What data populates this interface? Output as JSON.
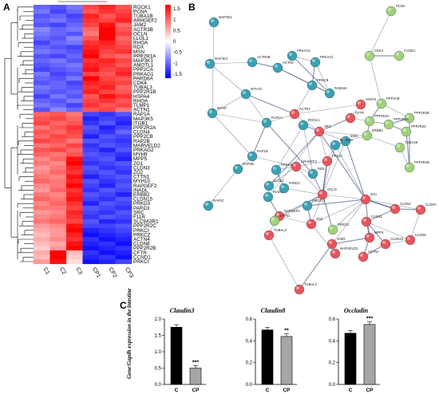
{
  "panels": {
    "a": "A",
    "b": "B",
    "c": "C"
  },
  "heatmap": {
    "columns": [
      "C1",
      "C2",
      "C3",
      "CP1",
      "CP2",
      "CP3"
    ],
    "legend_ticks": [
      "1.5",
      "1",
      "0.5",
      "0",
      "-0.5",
      "-1",
      "-1.5"
    ],
    "colors": {
      "high": "#ff0000",
      "mid": "#ffffff",
      "low": "#0000ff"
    },
    "genes": [
      "ROCK1",
      "PCNA",
      "TUBA1B",
      "ARHGEF2",
      "JAM2",
      "ACTR3B",
      "OCLN",
      "LLGL1",
      "RHOA",
      "RDX",
      "MSN",
      "PPP2R1A",
      "MAP3K1",
      "AMOTL1",
      "PPP2CA",
      "PRKAG1",
      "PARD6A",
      "CDK4",
      "TUBAL3",
      "PPP2R1B",
      "HSPA4",
      "RHOA",
      "TLMP1",
      "ACTN1",
      "RAP1A",
      "MAP3K5",
      "ITGB1",
      "PPP2R2A",
      "CLDN4",
      "PPP2CB",
      "RAP2B",
      "MARVELD2",
      "PRKAG2",
      "MYH9",
      "MPP5",
      "ZO1",
      "CLDN3",
      "ZO2",
      "CTTN1",
      "MYH10",
      "RAPGEF2",
      "INADL",
      "ERBB2",
      "CLDN15",
      "PRKD3",
      "PARD3",
      "SRC",
      "F11R",
      "SLC9A3R1",
      "PPP2R2C",
      "PRKCI",
      "PRKCZ",
      "ACTN4",
      "CLDN8",
      "PPP2R2B",
      "CFTR",
      "CCND1",
      "PRKCI"
    ],
    "values": [
      [
        -0.9,
        -1.0,
        -0.8,
        1.1,
        1.3,
        1.0
      ],
      [
        -0.8,
        -1.1,
        -0.9,
        1.0,
        1.2,
        1.1
      ],
      [
        -1.0,
        -0.9,
        -1.1,
        1.3,
        1.0,
        1.2
      ],
      [
        -0.9,
        -0.8,
        -1.0,
        1.2,
        1.1,
        1.3
      ],
      [
        -1.0,
        -1.1,
        -0.9,
        1.1,
        1.4,
        0.9
      ],
      [
        -0.7,
        -0.9,
        -0.8,
        0.9,
        1.5,
        1.0
      ],
      [
        -0.8,
        -0.9,
        -1.0,
        0.8,
        1.6,
        1.1
      ],
      [
        -0.9,
        -1.0,
        -0.7,
        1.0,
        1.5,
        0.9
      ],
      [
        -1.1,
        -0.9,
        -0.8,
        1.2,
        1.3,
        1.0
      ],
      [
        -0.9,
        -1.0,
        -1.1,
        1.3,
        1.2,
        1.1
      ],
      [
        -0.8,
        -0.9,
        -1.0,
        1.4,
        1.1,
        1.2
      ],
      [
        -1.0,
        -1.1,
        -0.9,
        1.5,
        1.0,
        0.9
      ],
      [
        -0.9,
        -0.8,
        -1.0,
        1.2,
        1.3,
        1.1
      ],
      [
        -1.0,
        -0.9,
        -0.8,
        1.3,
        1.2,
        1.0
      ],
      [
        -1.1,
        -1.0,
        -0.9,
        1.4,
        1.1,
        1.2
      ],
      [
        -0.8,
        -1.1,
        -1.0,
        1.1,
        1.0,
        1.3
      ],
      [
        -0.9,
        -1.0,
        -0.8,
        1.5,
        1.1,
        1.0
      ],
      [
        -1.0,
        -0.9,
        -1.1,
        1.3,
        1.2,
        1.1
      ],
      [
        -0.8,
        -0.9,
        -1.0,
        1.2,
        1.3,
        0.9
      ],
      [
        -0.9,
        -1.0,
        -0.9,
        1.3,
        1.1,
        1.0
      ],
      [
        -1.1,
        -0.8,
        -1.0,
        1.0,
        1.4,
        1.2
      ],
      [
        -0.9,
        -1.0,
        -0.8,
        1.1,
        1.2,
        1.0
      ],
      [
        -0.8,
        -0.9,
        -1.1,
        1.2,
        1.0,
        1.1
      ],
      [
        -1.0,
        -0.7,
        -0.9,
        1.0,
        1.1,
        0.8
      ],
      [
        0.9,
        1.0,
        0.8,
        -1.1,
        -1.2,
        -1.0
      ],
      [
        1.0,
        1.1,
        0.9,
        -1.3,
        -1.1,
        -1.2
      ],
      [
        1.1,
        0.9,
        1.0,
        -1.2,
        -1.0,
        -1.3
      ],
      [
        0.8,
        1.0,
        1.2,
        -1.0,
        -1.3,
        -1.1
      ],
      [
        1.0,
        0.9,
        1.1,
        -1.1,
        -1.2,
        -0.9
      ],
      [
        0.9,
        1.1,
        1.0,
        -1.3,
        -1.0,
        -1.1
      ],
      [
        1.1,
        1.0,
        0.8,
        -1.0,
        -1.1,
        -1.2
      ],
      [
        0.8,
        0.9,
        1.1,
        -1.2,
        -1.0,
        -1.1
      ],
      [
        1.0,
        1.1,
        0.9,
        -1.1,
        -1.3,
        -1.0
      ],
      [
        0.9,
        0.8,
        1.0,
        -1.0,
        -1.1,
        -1.2
      ],
      [
        0.7,
        0.9,
        1.4,
        -1.1,
        -1.0,
        -1.3
      ],
      [
        0.8,
        0.7,
        1.5,
        -1.2,
        -1.1,
        -1.0
      ],
      [
        0.6,
        0.8,
        1.3,
        -1.0,
        -1.2,
        -1.1
      ],
      [
        0.7,
        0.9,
        1.2,
        -1.1,
        -1.0,
        -1.2
      ],
      [
        0.8,
        0.7,
        1.4,
        -1.3,
        -1.1,
        -1.0
      ],
      [
        0.9,
        0.8,
        1.3,
        -1.0,
        -1.2,
        -1.1
      ],
      [
        0.7,
        0.8,
        1.5,
        -1.1,
        -1.3,
        -1.0
      ],
      [
        0.6,
        0.9,
        1.2,
        -1.2,
        -1.0,
        -1.1
      ],
      [
        0.8,
        0.7,
        1.3,
        -1.0,
        -1.1,
        -1.3
      ],
      [
        0.9,
        0.8,
        1.4,
        -1.1,
        -1.2,
        -1.0
      ],
      [
        0.7,
        0.9,
        1.2,
        -1.3,
        -1.0,
        -1.1
      ],
      [
        0.8,
        0.8,
        1.1,
        -1.0,
        -1.1,
        -1.2
      ],
      [
        0.6,
        0.7,
        1.3,
        -1.1,
        -1.2,
        -1.0
      ],
      [
        0.7,
        0.8,
        1.2,
        -1.2,
        -1.0,
        -1.1
      ],
      [
        0.8,
        0.9,
        1.1,
        -1.0,
        -1.3,
        -1.2
      ],
      [
        0.6,
        0.7,
        1.4,
        -1.1,
        -1.1,
        -1.0
      ],
      [
        0.5,
        0.6,
        1.5,
        -1.3,
        -1.2,
        -1.1
      ],
      [
        0.4,
        0.6,
        1.3,
        -1.4,
        -1.3,
        -1.2
      ],
      [
        0.5,
        0.7,
        1.2,
        -1.2,
        -1.4,
        -1.3
      ],
      [
        0.4,
        0.5,
        1.4,
        -1.3,
        -1.2,
        -1.4
      ],
      [
        0.3,
        0.6,
        1.5,
        -1.4,
        -1.3,
        -1.2
      ],
      [
        0.5,
        1.6,
        0.4,
        -1.2,
        -1.4,
        -1.3
      ],
      [
        0.4,
        1.5,
        0.3,
        -1.3,
        -1.2,
        -1.4
      ],
      [
        0.6,
        1.4,
        0.2,
        -1.4,
        -1.3,
        -1.1
      ]
    ]
  },
  "network": {
    "colors": {
      "teal": "#3aa0b3",
      "green": "#9fd27a",
      "red": "#e8545a",
      "edge": "#2f4370"
    },
    "nodes": [
      {
        "label": "MAP3K5",
        "c": "teal"
      },
      {
        "label": "PCNA",
        "c": "green"
      },
      {
        "label": "PRKAG2",
        "c": "teal"
      },
      {
        "label": "PRKAG1",
        "c": "teal"
      },
      {
        "label": "CDK4",
        "c": "green"
      },
      {
        "label": "CCND1",
        "c": "green"
      },
      {
        "label": "MAP3K1",
        "c": "teal"
      },
      {
        "label": "ACTR3B",
        "c": "teal"
      },
      {
        "label": "ACTR2",
        "c": "teal"
      },
      {
        "label": "PRKCB",
        "c": "teal"
      },
      {
        "label": "RAB18A",
        "c": "teal"
      },
      {
        "label": "MYH10",
        "c": "teal"
      },
      {
        "label": "PPP2CB",
        "c": "green"
      },
      {
        "label": "PPP2R2B",
        "c": "green"
      },
      {
        "label": "MYH9",
        "c": "teal"
      },
      {
        "label": "HSPA4",
        "c": "red"
      },
      {
        "label": "ACTN1",
        "c": "red"
      },
      {
        "label": "CFTR",
        "c": "red"
      },
      {
        "label": "PPP2R2A",
        "c": "green"
      },
      {
        "label": "PPP2R2C",
        "c": "green"
      },
      {
        "label": "PPP2R1A",
        "c": "green"
      },
      {
        "label": "RAP1A",
        "c": "teal"
      },
      {
        "label": "ROCK1",
        "c": "teal"
      },
      {
        "label": "TUBA1B",
        "c": "green"
      },
      {
        "label": "ERBB2",
        "c": "green"
      },
      {
        "label": "SRC",
        "c": "red"
      },
      {
        "label": "PPP2R1B",
        "c": "green"
      },
      {
        "label": "RAP1B",
        "c": "teal"
      },
      {
        "label": "MSN",
        "c": "teal"
      },
      {
        "label": "PARD6A",
        "c": "teal"
      },
      {
        "label": "PRKCI",
        "c": "red"
      },
      {
        "label": "RAP2B",
        "c": "teal"
      },
      {
        "label": "ARHGEF2",
        "c": "red"
      },
      {
        "label": "RDX",
        "c": "teal"
      },
      {
        "label": "PRKCZ",
        "c": "teal"
      },
      {
        "label": "PARD3",
        "c": "teal"
      },
      {
        "label": "OCLN",
        "c": "red"
      },
      {
        "label": "RAP2C",
        "c": "teal"
      },
      {
        "label": "LLGL1",
        "c": "teal"
      },
      {
        "label": "INADL",
        "c": "teal"
      },
      {
        "label": "AMOTL1",
        "c": "teal"
      },
      {
        "label": "ZO1",
        "c": "red"
      },
      {
        "label": "RAPGEF2",
        "c": "red"
      },
      {
        "label": "CTTN1",
        "c": "green"
      },
      {
        "label": "ZO2",
        "c": "red"
      },
      {
        "label": "PRKD3",
        "c": "green"
      },
      {
        "label": "CLDN4",
        "c": "red"
      },
      {
        "label": "CLDN7",
        "c": "red"
      },
      {
        "label": "TUBAL3",
        "c": "red"
      },
      {
        "label": "MPP5",
        "c": "red"
      },
      {
        "label": "CLDN3",
        "c": "red"
      },
      {
        "label": "CLDN8",
        "c": "red"
      },
      {
        "label": "CLDN15",
        "c": "red"
      },
      {
        "label": "JAM2",
        "c": "red"
      },
      {
        "label": "MARVELD2",
        "c": "red"
      },
      {
        "label": "TUBAL3",
        "c": "red"
      },
      {
        "label": "ACTN4",
        "c": "red"
      }
    ]
  },
  "bar_charts": {
    "y_label": "Gene/Gapdh expression in the intestine",
    "colors": {
      "C": "#000000",
      "CP": "#a6a6a6"
    },
    "charts": [
      {
        "title": "Claudin3",
        "ymax": 2.0,
        "yticks": [
          "0.0",
          "0.5",
          "1.0",
          "1.5",
          "2.0"
        ],
        "categories": [
          "C",
          "CP"
        ],
        "values": [
          1.75,
          0.5
        ],
        "sig": "***"
      },
      {
        "title": "Claudin8",
        "ymax": 0.6,
        "yticks": [
          "0.0",
          "0.2",
          "0.4",
          "0.6"
        ],
        "categories": [
          "C",
          "CP"
        ],
        "values": [
          0.5,
          0.44
        ],
        "sig": "**"
      },
      {
        "title": "Occludin",
        "ymax": 0.6,
        "yticks": [
          "0.0",
          "0.2",
          "0.4",
          "0.6"
        ],
        "categories": [
          "C",
          "CP"
        ],
        "values": [
          0.47,
          0.55
        ],
        "sig": "***"
      }
    ]
  },
  "chart_data": [
    {
      "type": "heatmap",
      "title": "",
      "columns": [
        "C1",
        "C2",
        "C3",
        "CP1",
        "CP2",
        "CP3"
      ],
      "color_scale": [
        -1.5,
        1.5
      ],
      "legend_ticks": [
        "1.5",
        "1",
        "0.5",
        "0",
        "-0.5",
        "-1",
        "-1.5"
      ]
    },
    {
      "type": "bar",
      "title": "Claudin3",
      "categories": [
        "C",
        "CP"
      ],
      "values": [
        1.75,
        0.5
      ],
      "ylabel": "Gene/Gapdh expression in the intestine",
      "ylim": [
        0,
        2.0
      ],
      "annotations": [
        "***"
      ]
    },
    {
      "type": "bar",
      "title": "Claudin8",
      "categories": [
        "C",
        "CP"
      ],
      "values": [
        0.5,
        0.44
      ],
      "ylabel": "",
      "ylim": [
        0,
        0.6
      ],
      "annotations": [
        "**"
      ]
    },
    {
      "type": "bar",
      "title": "Occludin",
      "categories": [
        "C",
        "CP"
      ],
      "values": [
        0.47,
        0.55
      ],
      "ylabel": "",
      "ylim": [
        0,
        0.6
      ],
      "annotations": [
        "***"
      ]
    }
  ]
}
